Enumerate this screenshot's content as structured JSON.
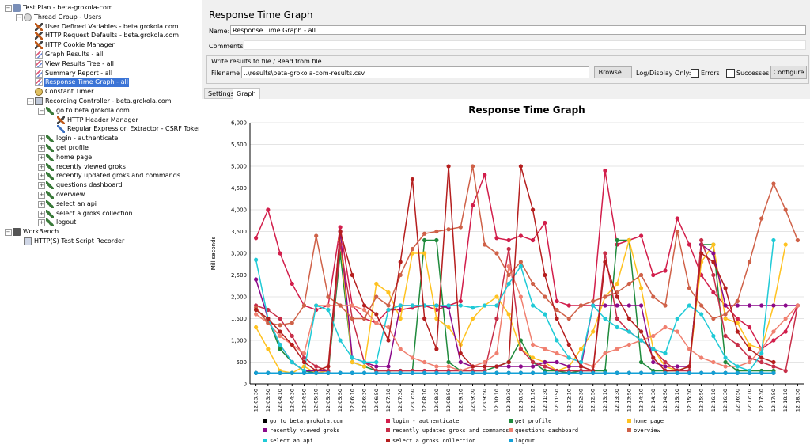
{
  "tree": {
    "items": [
      {
        "label": "Test Plan - beta-grokola-com",
        "icon": "test-plan-icon",
        "toggle": "−"
      },
      {
        "label": "Thread Group - Users",
        "icon": "thread-group-icon",
        "toggle": "−"
      },
      {
        "label": "User Defined Variables - beta.grokola.com",
        "icon": "config-icon",
        "toggle": ""
      },
      {
        "label": "HTTP Request Defaults - beta.grokola.com",
        "icon": "config-icon",
        "toggle": ""
      },
      {
        "label": "HTTP Cookie Manager",
        "icon": "config-icon",
        "toggle": ""
      },
      {
        "label": "Graph Results - all",
        "icon": "listener-icon",
        "toggle": ""
      },
      {
        "label": "View Results Tree - all",
        "icon": "listener-icon",
        "toggle": ""
      },
      {
        "label": "Summary Report - all",
        "icon": "listener-icon",
        "toggle": ""
      },
      {
        "label": "Response Time Graph - all",
        "icon": "listener-icon",
        "toggle": ""
      },
      {
        "label": "Constant Timer",
        "icon": "timer-icon",
        "toggle": ""
      },
      {
        "label": "Recording Controller - beta.grokola.com",
        "icon": "controller-icon",
        "toggle": "−"
      },
      {
        "label": "go to beta.grokola.com",
        "icon": "sampler-icon",
        "toggle": "−"
      },
      {
        "label": "HTTP Header Manager",
        "icon": "config-icon",
        "toggle": ""
      },
      {
        "label": "Regular Expression Extractor - CSRF Token",
        "icon": "extractor-icon",
        "toggle": ""
      },
      {
        "label": "login - authenticate",
        "icon": "sampler-icon",
        "toggle": "+"
      },
      {
        "label": "get profile",
        "icon": "sampler-icon",
        "toggle": "+"
      },
      {
        "label": "home page",
        "icon": "sampler-icon",
        "toggle": "+"
      },
      {
        "label": "recently viewed groks",
        "icon": "sampler-icon",
        "toggle": "+"
      },
      {
        "label": "recently updated groks and commands",
        "icon": "sampler-icon",
        "toggle": "+"
      },
      {
        "label": "questions dashboard",
        "icon": "sampler-icon",
        "toggle": "+"
      },
      {
        "label": "overview",
        "icon": "sampler-icon",
        "toggle": "+"
      },
      {
        "label": "select an api",
        "icon": "sampler-icon",
        "toggle": "+"
      },
      {
        "label": "select a groks collection",
        "icon": "sampler-icon",
        "toggle": "+"
      },
      {
        "label": "logout",
        "icon": "sampler-icon",
        "toggle": "+"
      },
      {
        "label": "WorkBench",
        "icon": "workbench-icon",
        "toggle": "−"
      },
      {
        "label": "HTTP(S) Test Script Recorder",
        "icon": "recorder-icon",
        "toggle": ""
      }
    ],
    "selected_index": 8
  },
  "panel": {
    "title": "Response Time Graph",
    "name_label": "Name:",
    "name_value": "Response Time Graph - all",
    "comments_label": "Comments:",
    "file_group_title": "Write results to file / Read from file",
    "filename_label": "Filename",
    "filename_value": "..\\results\\beta-grokola-com-results.csv",
    "browse_label": "Browse...",
    "log_display_label": "Log/Display Only:",
    "errors_label": "Errors",
    "successes_label": "Successes",
    "configure_label": "Configure",
    "tabs": [
      "Settings",
      "Graph"
    ],
    "active_tab": "Graph"
  },
  "chart_data": {
    "type": "line",
    "title": "Response Time Graph",
    "ylabel": "Milliseconds",
    "ylim": [
      0,
      6000
    ],
    "yticks": [
      "0",
      "500",
      "1,000",
      "1,500",
      "2,000",
      "2,500",
      "3,000",
      "3,500",
      "4,000",
      "4,500",
      "5,000",
      "5,500",
      "6,000"
    ],
    "x": [
      "12:03:30",
      "12:03:50",
      "12:04:10",
      "12:04:30",
      "12:04:50",
      "12:05:10",
      "12:05:30",
      "12:05:50",
      "12:06:10",
      "12:06:30",
      "12:06:50",
      "12:07:10",
      "12:07:30",
      "12:07:50",
      "12:08:10",
      "12:08:30",
      "12:08:50",
      "12:09:10",
      "12:09:30",
      "12:09:50",
      "12:10:10",
      "12:10:30",
      "12:10:50",
      "12:11:10",
      "12:11:30",
      "12:11:50",
      "12:12:10",
      "12:12:30",
      "12:12:50",
      "12:13:10",
      "12:13:30",
      "12:13:50",
      "12:14:10",
      "12:14:30",
      "12:14:50",
      "12:15:10",
      "12:15:30",
      "12:15:50",
      "12:16:10",
      "12:16:30",
      "12:16:50",
      "12:17:10",
      "12:17:30",
      "12:17:50",
      "12:18:10",
      "12:18:30"
    ],
    "series": [
      {
        "name": "go to beta.grokola.com",
        "color": "#000000",
        "values": [
          250,
          250,
          250,
          250,
          250,
          250,
          250,
          250,
          250,
          250,
          250,
          250,
          250,
          250,
          250,
          250,
          250,
          250,
          250,
          250,
          250,
          250,
          250,
          250,
          250,
          250,
          250,
          250,
          250,
          250,
          250,
          250,
          250,
          250,
          250,
          250,
          250,
          250,
          250,
          250,
          250,
          250,
          250,
          250,
          null,
          null
        ]
      },
      {
        "name": "login - authenticate",
        "color": "#d21e4b",
        "values": [
          3350,
          4000,
          3000,
          2300,
          1800,
          1700,
          1800,
          3600,
          1800,
          1500,
          1400,
          1700,
          1700,
          1750,
          1800,
          1700,
          1800,
          1900,
          4100,
          4800,
          3350,
          3300,
          3400,
          3300,
          3700,
          1900,
          1800,
          1800,
          1800,
          4900,
          3200,
          3300,
          3400,
          2500,
          2600,
          3800,
          3200,
          2500,
          2100,
          1800,
          1500,
          1300,
          800,
          1000,
          1200,
          1800
        ]
      },
      {
        "name": "get profile",
        "color": "#1f8a3c",
        "values": [
          1700,
          1500,
          800,
          500,
          300,
          250,
          250,
          3000,
          500,
          400,
          300,
          300,
          300,
          300,
          3300,
          3300,
          500,
          300,
          300,
          300,
          400,
          500,
          1000,
          500,
          300,
          300,
          250,
          300,
          300,
          300,
          3300,
          3300,
          500,
          300,
          300,
          300,
          400,
          3200,
          3200,
          500,
          300,
          300,
          300,
          300,
          null,
          null
        ]
      },
      {
        "name": "home page",
        "color": "#ffc220",
        "values": [
          1300,
          800,
          300,
          250,
          400,
          250,
          300,
          3300,
          500,
          400,
          2300,
          2100,
          1500,
          3000,
          3000,
          1500,
          1300,
          900,
          1500,
          1800,
          2000,
          1600,
          800,
          600,
          500,
          300,
          400,
          800,
          1200,
          2000,
          2300,
          3300,
          2200,
          800,
          400,
          300,
          400,
          2800,
          3200,
          1500,
          1400,
          900,
          800,
          1800,
          3200,
          null
        ]
      },
      {
        "name": "recently viewed groks",
        "color": "#8b0a8b",
        "values": [
          2400,
          1500,
          900,
          500,
          300,
          300,
          300,
          3500,
          600,
          500,
          400,
          400,
          1800,
          1800,
          1800,
          1800,
          1750,
          500,
          400,
          400,
          400,
          400,
          400,
          400,
          500,
          500,
          400,
          400,
          1800,
          1800,
          1800,
          1800,
          1800,
          500,
          400,
          400,
          400,
          3200,
          3000,
          1800,
          1800,
          1800,
          1800,
          1800,
          1800,
          1800
        ]
      },
      {
        "name": "recently updated groks and commands",
        "color": "#c72e48",
        "values": [
          1800,
          1700,
          1500,
          1100,
          600,
          400,
          300,
          3200,
          1500,
          500,
          300,
          300,
          300,
          300,
          300,
          300,
          300,
          300,
          300,
          300,
          1500,
          3100,
          800,
          500,
          400,
          300,
          300,
          300,
          300,
          3000,
          1500,
          1200,
          1000,
          800,
          500,
          300,
          300,
          3300,
          2500,
          1100,
          900,
          600,
          500,
          400,
          300,
          1800
        ]
      },
      {
        "name": "questions dashboard",
        "color": "#f08070",
        "values": [
          1600,
          1400,
          1100,
          900,
          700,
          1800,
          1800,
          1800,
          1800,
          1700,
          1400,
          1300,
          800,
          600,
          500,
          400,
          400,
          300,
          400,
          500,
          700,
          2700,
          2000,
          900,
          800,
          700,
          600,
          500,
          400,
          700,
          800,
          900,
          1000,
          1100,
          1300,
          1200,
          800,
          600,
          500,
          400,
          400,
          500,
          800,
          1200,
          1500,
          1800
        ]
      },
      {
        "name": "overview",
        "color": "#cf6148",
        "values": [
          1750,
          1400,
          1350,
          1400,
          1800,
          3400,
          2000,
          1800,
          1500,
          1500,
          2000,
          1800,
          2500,
          3100,
          3450,
          3500,
          3550,
          3600,
          5000,
          3200,
          3000,
          2500,
          2800,
          2300,
          2000,
          1700,
          1500,
          1800,
          1900,
          2000,
          2100,
          2300,
          2500,
          2000,
          1800,
          3500,
          2200,
          1800,
          1500,
          1600,
          1900,
          2800,
          3800,
          4600,
          4000,
          3300
        ]
      },
      {
        "name": "select an api",
        "color": "#1fcad6",
        "values": [
          2850,
          1500,
          900,
          500,
          300,
          1800,
          1700,
          1000,
          600,
          500,
          500,
          1700,
          1800,
          1800,
          1800,
          1800,
          1800,
          1800,
          1750,
          1800,
          1800,
          2300,
          2700,
          1800,
          1600,
          1000,
          600,
          500,
          1800,
          1500,
          1300,
          1200,
          1000,
          800,
          700,
          1500,
          1800,
          1600,
          1100,
          600,
          400,
          300,
          700,
          3300,
          null,
          null
        ]
      },
      {
        "name": "select a groks collection",
        "color": "#b51e1e",
        "values": [
          1700,
          1500,
          1200,
          900,
          500,
          300,
          400,
          3500,
          2500,
          1800,
          1600,
          1000,
          2800,
          4700,
          1500,
          800,
          5000,
          700,
          400,
          400,
          400,
          500,
          5000,
          4000,
          2500,
          1500,
          900,
          400,
          300,
          2800,
          2000,
          1500,
          1200,
          600,
          300,
          300,
          400,
          3000,
          2800,
          2200,
          1200,
          800,
          600,
          500,
          null,
          null
        ]
      },
      {
        "name": "logout",
        "color": "#13a0d6",
        "values": [
          250,
          250,
          250,
          250,
          250,
          250,
          250,
          250,
          250,
          250,
          250,
          250,
          250,
          250,
          250,
          250,
          250,
          250,
          250,
          250,
          250,
          250,
          250,
          250,
          250,
          250,
          250,
          250,
          250,
          250,
          250,
          250,
          250,
          250,
          250,
          250,
          250,
          250,
          250,
          250,
          250,
          250,
          250,
          250,
          null,
          null
        ]
      }
    ]
  }
}
